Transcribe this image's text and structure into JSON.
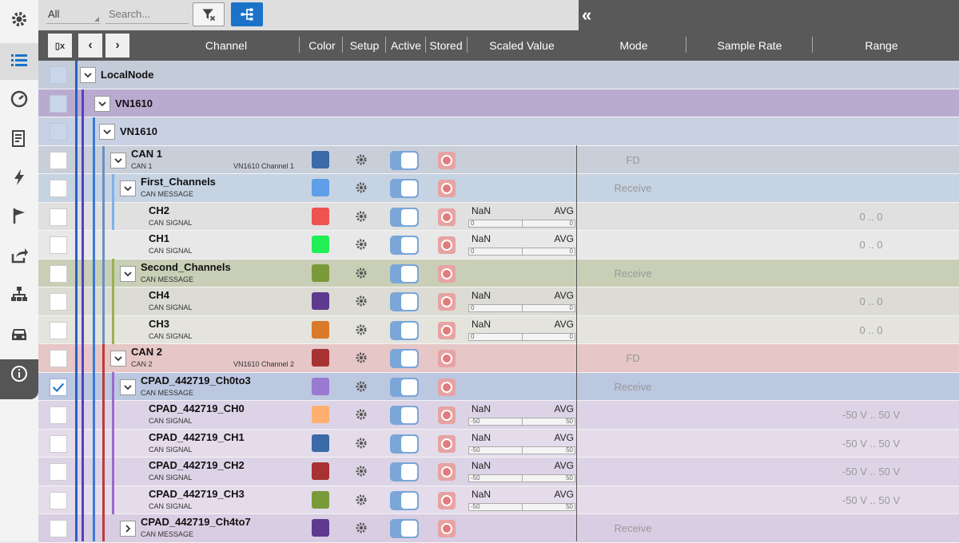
{
  "toolbar": {
    "filter_value": "All",
    "search_placeholder": "Search..."
  },
  "columns": {
    "channel": "Channel",
    "color": "Color",
    "setup": "Setup",
    "active": "Active",
    "stored": "Stored",
    "scaled_value": "Scaled Value",
    "mode": "Mode",
    "sample_rate": "Sample Rate",
    "range": "Range"
  },
  "rail_icons": [
    "gear-icon",
    "list-icon",
    "gauge-icon",
    "report-icon",
    "lightning-icon",
    "flag-icon",
    "export-icon",
    "network-icon",
    "car-icon",
    "info-icon"
  ],
  "colors": {
    "header_bg": "#595959",
    "accent": "#1a73c9"
  },
  "rows": [
    {
      "name": "LocalNode",
      "sub": "",
      "sub_right": "",
      "type": "group",
      "checked": false,
      "expanded": true,
      "swatch": "",
      "mode": "",
      "range": "",
      "scaled": null
    },
    {
      "name": "VN1610",
      "sub": "",
      "sub_right": "",
      "type": "group",
      "checked": false,
      "expanded": true,
      "swatch": "",
      "mode": "",
      "range": "",
      "scaled": null
    },
    {
      "name": "VN1610",
      "sub": "",
      "sub_right": "",
      "type": "group",
      "checked": false,
      "expanded": true,
      "swatch": "",
      "mode": "",
      "range": "",
      "scaled": null
    },
    {
      "name": "CAN 1",
      "sub": "CAN 1",
      "sub_right": "VN1610 Channel 1",
      "type": "channel",
      "checked": false,
      "expanded": true,
      "swatch": "#3b6aa8",
      "mode": "FD",
      "range": "",
      "scaled": null
    },
    {
      "name": "First_Channels",
      "sub": "CAN MESSAGE",
      "sub_right": "",
      "type": "message",
      "checked": false,
      "expanded": true,
      "swatch": "#5f9ee8",
      "mode": "Receive",
      "range": "",
      "scaled": null
    },
    {
      "name": "CH2",
      "sub": "CAN SIGNAL",
      "sub_right": "",
      "type": "signal",
      "checked": false,
      "expanded": false,
      "swatch": "#ef5350",
      "mode": "",
      "range": "0 .. 0",
      "scaled": {
        "value": "NaN",
        "agg": "AVG",
        "min": "0",
        "max": "0"
      }
    },
    {
      "name": "CH1",
      "sub": "CAN SIGNAL",
      "sub_right": "",
      "type": "signal",
      "checked": false,
      "expanded": false,
      "swatch": "#22ee55",
      "mode": "",
      "range": "0 .. 0",
      "scaled": {
        "value": "NaN",
        "agg": "AVG",
        "min": "0",
        "max": "0"
      }
    },
    {
      "name": "Second_Channels",
      "sub": "CAN MESSAGE",
      "sub_right": "",
      "type": "message",
      "checked": false,
      "expanded": true,
      "swatch": "#7a9a3a",
      "mode": "Receive",
      "range": "",
      "scaled": null
    },
    {
      "name": "CH4",
      "sub": "CAN SIGNAL",
      "sub_right": "",
      "type": "signal",
      "checked": false,
      "expanded": false,
      "swatch": "#5e3a8e",
      "mode": "",
      "range": "0 .. 0",
      "scaled": {
        "value": "NaN",
        "agg": "AVG",
        "min": "0",
        "max": "0"
      }
    },
    {
      "name": "CH3",
      "sub": "CAN SIGNAL",
      "sub_right": "",
      "type": "signal",
      "checked": false,
      "expanded": false,
      "swatch": "#d87a2a",
      "mode": "",
      "range": "0 .. 0",
      "scaled": {
        "value": "NaN",
        "agg": "AVG",
        "min": "0",
        "max": "0"
      }
    },
    {
      "name": "CAN 2",
      "sub": "CAN 2",
      "sub_right": "VN1610 Channel 2",
      "type": "channel",
      "checked": false,
      "expanded": true,
      "swatch": "#a83232",
      "mode": "FD",
      "range": "",
      "scaled": null
    },
    {
      "name": "CPAD_442719_Ch0to3",
      "sub": "CAN MESSAGE",
      "sub_right": "",
      "type": "message",
      "checked": true,
      "expanded": true,
      "swatch": "#9a7ad0",
      "mode": "Receive",
      "range": "",
      "scaled": null
    },
    {
      "name": "CPAD_442719_CH0",
      "sub": "CAN SIGNAL",
      "sub_right": "",
      "type": "signal",
      "checked": false,
      "expanded": false,
      "swatch": "#ffb070",
      "mode": "",
      "range": "-50 V .. 50 V",
      "scaled": {
        "value": "NaN",
        "agg": "AVG",
        "min": "-50",
        "max": "50"
      }
    },
    {
      "name": "CPAD_442719_CH1",
      "sub": "CAN SIGNAL",
      "sub_right": "",
      "type": "signal",
      "checked": false,
      "expanded": false,
      "swatch": "#3b6aa8",
      "mode": "",
      "range": "-50 V .. 50 V",
      "scaled": {
        "value": "NaN",
        "agg": "AVG",
        "min": "-50",
        "max": "50"
      }
    },
    {
      "name": "CPAD_442719_CH2",
      "sub": "CAN SIGNAL",
      "sub_right": "",
      "type": "signal",
      "checked": false,
      "expanded": false,
      "swatch": "#a83232",
      "mode": "",
      "range": "-50 V .. 50 V",
      "scaled": {
        "value": "NaN",
        "agg": "AVG",
        "min": "-50",
        "max": "50"
      }
    },
    {
      "name": "CPAD_442719_CH3",
      "sub": "CAN SIGNAL",
      "sub_right": "",
      "type": "signal",
      "checked": false,
      "expanded": false,
      "swatch": "#7a9a3a",
      "mode": "",
      "range": "-50 V .. 50 V",
      "scaled": {
        "value": "NaN",
        "agg": "AVG",
        "min": "-50",
        "max": "50"
      }
    },
    {
      "name": "CPAD_442719_Ch4to7",
      "sub": "CAN MESSAGE",
      "sub_right": "",
      "type": "message",
      "checked": false,
      "expanded": false,
      "swatch": "#5e3a8e",
      "mode": "Receive",
      "range": "",
      "scaled": null
    }
  ]
}
